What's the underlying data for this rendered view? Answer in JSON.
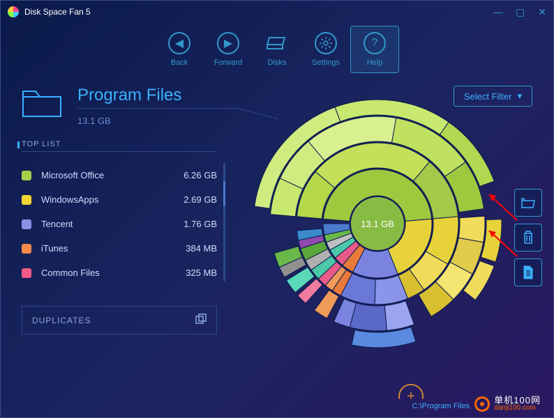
{
  "app": {
    "title": "Disk Space Fan 5"
  },
  "toolbar": {
    "back": "Back",
    "forward": "Forward",
    "disks": "Disks",
    "settings": "Settings",
    "help": "Help",
    "active": "help"
  },
  "page": {
    "title": "Program Files",
    "size": "13.1 GB"
  },
  "filter": {
    "label": "Select Filter"
  },
  "toplist": {
    "header": "TOP LIST",
    "items": [
      {
        "name": "Microsoft Office",
        "size": "6.26 GB",
        "color": "#a4d148"
      },
      {
        "name": "WindowsApps",
        "size": "2.69 GB",
        "color": "#f4d732"
      },
      {
        "name": "Tencent",
        "size": "1.76 GB",
        "color": "#8a94e8"
      },
      {
        "name": "iTunes",
        "size": "384 MB",
        "color": "#f48a45"
      },
      {
        "name": "Common Files",
        "size": "325 MB",
        "color": "#f45a8a"
      }
    ]
  },
  "duplicates": {
    "label": "DUPLICATES"
  },
  "breadcrumb": {
    "text": "C:\\Program Files"
  },
  "chart": {
    "center_label": "13.1 GB",
    "center_color": "#88bb44",
    "rings": [
      {
        "r0": 40,
        "r1": 78,
        "segments": [
          {
            "a0": -85,
            "a1": 85,
            "fill": "#9ec93f"
          },
          {
            "a0": 85,
            "a1": 158,
            "fill": "#e8d23a"
          },
          {
            "a0": 158,
            "a1": 207,
            "fill": "#7a84e0"
          },
          {
            "a0": 207,
            "a1": 220,
            "fill": "#e87a3a"
          },
          {
            "a0": 220,
            "a1": 231,
            "fill": "#e85a8a"
          },
          {
            "a0": 231,
            "a1": 241,
            "fill": "#4ac8a8"
          },
          {
            "a0": 241,
            "a1": 250,
            "fill": "#c0c0c0"
          },
          {
            "a0": 250,
            "a1": 258,
            "fill": "#6ab84a"
          },
          {
            "a0": 258,
            "a1": 270,
            "fill": "#4a7acc"
          }
        ]
      },
      {
        "r0": 80,
        "r1": 116,
        "segments": [
          {
            "a0": -85,
            "a1": -50,
            "fill": "#b4d84a"
          },
          {
            "a0": -50,
            "a1": 40,
            "fill": "#c4e05a"
          },
          {
            "a0": 40,
            "a1": 85,
            "fill": "#a4c84a"
          },
          {
            "a0": 85,
            "a1": 120,
            "fill": "#e8d23a"
          },
          {
            "a0": 120,
            "a1": 145,
            "fill": "#f0dc5a"
          },
          {
            "a0": 145,
            "a1": 158,
            "fill": "#d8c030"
          },
          {
            "a0": 158,
            "a1": 182,
            "fill": "#8a94e8"
          },
          {
            "a0": 182,
            "a1": 207,
            "fill": "#6a78d8"
          },
          {
            "a0": 207,
            "a1": 214,
            "fill": "#e87a3a"
          },
          {
            "a0": 214,
            "a1": 220,
            "fill": "#f09a5a"
          },
          {
            "a0": 220,
            "a1": 227,
            "fill": "#e85a8a"
          },
          {
            "a0": 227,
            "a1": 235,
            "fill": "#4ac8a8"
          },
          {
            "a0": 235,
            "a1": 243,
            "fill": "#b0b0b0"
          },
          {
            "a0": 243,
            "a1": 252,
            "fill": "#5aa83a"
          },
          {
            "a0": 252,
            "a1": 258,
            "fill": "#904ab0"
          },
          {
            "a0": 258,
            "a1": 265,
            "fill": "#3a8acc"
          }
        ]
      },
      {
        "r0": 118,
        "r1": 154,
        "segments": [
          {
            "a0": -85,
            "a1": -65,
            "fill": "#c8e870"
          },
          {
            "a0": -65,
            "a1": -40,
            "fill": "#d0ec80"
          },
          {
            "a0": -40,
            "a1": 10,
            "fill": "#d8f090"
          },
          {
            "a0": 10,
            "a1": 55,
            "fill": "#c0e060"
          },
          {
            "a0": 55,
            "a1": 82,
            "fill": "#9ec93f"
          },
          {
            "a0": 86,
            "a1": 100,
            "fill": "#f0dc5a"
          },
          {
            "a0": 100,
            "a1": 118,
            "fill": "#e0cc4a"
          },
          {
            "a0": 118,
            "a1": 135,
            "fill": "#f4e470"
          },
          {
            "a0": 135,
            "a1": 150,
            "fill": "#d8c030"
          },
          {
            "a0": 160,
            "a1": 175,
            "fill": "#9aa4f0"
          },
          {
            "a0": 175,
            "a1": 195,
            "fill": "#5a68c8"
          },
          {
            "a0": 195,
            "a1": 204,
            "fill": "#7a84e0"
          },
          {
            "a0": 208,
            "a1": 216,
            "fill": "#f09a5a"
          },
          {
            "a0": 222,
            "a1": 228,
            "fill": "#f07aa0"
          },
          {
            "a0": 230,
            "a1": 238,
            "fill": "#5ad8b8"
          },
          {
            "a0": 240,
            "a1": 246,
            "fill": "#909090"
          },
          {
            "a0": 246,
            "a1": 254,
            "fill": "#6ab84a"
          }
        ]
      },
      {
        "r0": 156,
        "r1": 178,
        "segments": [
          {
            "a0": -82,
            "a1": -20,
            "fill": "#d0ec80"
          },
          {
            "a0": -20,
            "a1": 35,
            "fill": "#c8e870"
          },
          {
            "a0": 35,
            "a1": 70,
            "fill": "#b0d850"
          },
          {
            "a0": 88,
            "a1": 108,
            "fill": "#e8d23a"
          },
          {
            "a0": 110,
            "a1": 128,
            "fill": "#f0dc5a"
          },
          {
            "a0": 162,
            "a1": 192,
            "fill": "#5a8ae0"
          }
        ]
      }
    ]
  }
}
